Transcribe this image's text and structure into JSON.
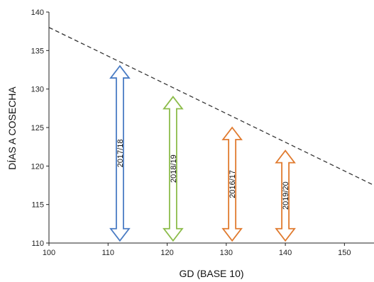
{
  "chart_data": {
    "type": "line",
    "title": "",
    "xlabel": "GD (BASE 10)",
    "ylabel": "DÍAS A COSECHA",
    "xlim": [
      100,
      155
    ],
    "ylim": [
      110,
      140
    ],
    "xticks": [
      "100",
      "110",
      "120",
      "130",
      "140",
      "150"
    ],
    "yticks": [
      "110",
      "115",
      "120",
      "125",
      "130",
      "135",
      "140"
    ],
    "grid": false,
    "trend_line": {
      "style": "dashed",
      "color": "#333333",
      "x": [
        100,
        155
      ],
      "y": [
        138,
        117.5
      ]
    },
    "ranges": [
      {
        "label": "2017/18",
        "x": 112,
        "y_min": 110.3,
        "y_max": 133,
        "color": "#4a7cc4"
      },
      {
        "label": "2018/19",
        "x": 121,
        "y_min": 110.3,
        "y_max": 129,
        "color": "#8cbc4a"
      },
      {
        "label": "2016/17",
        "x": 131,
        "y_min": 110.3,
        "y_max": 125,
        "color": "#e07a2e"
      },
      {
        "label": "2019/20",
        "x": 140,
        "y_min": 110.3,
        "y_max": 122,
        "color": "#e07a2e"
      }
    ]
  }
}
